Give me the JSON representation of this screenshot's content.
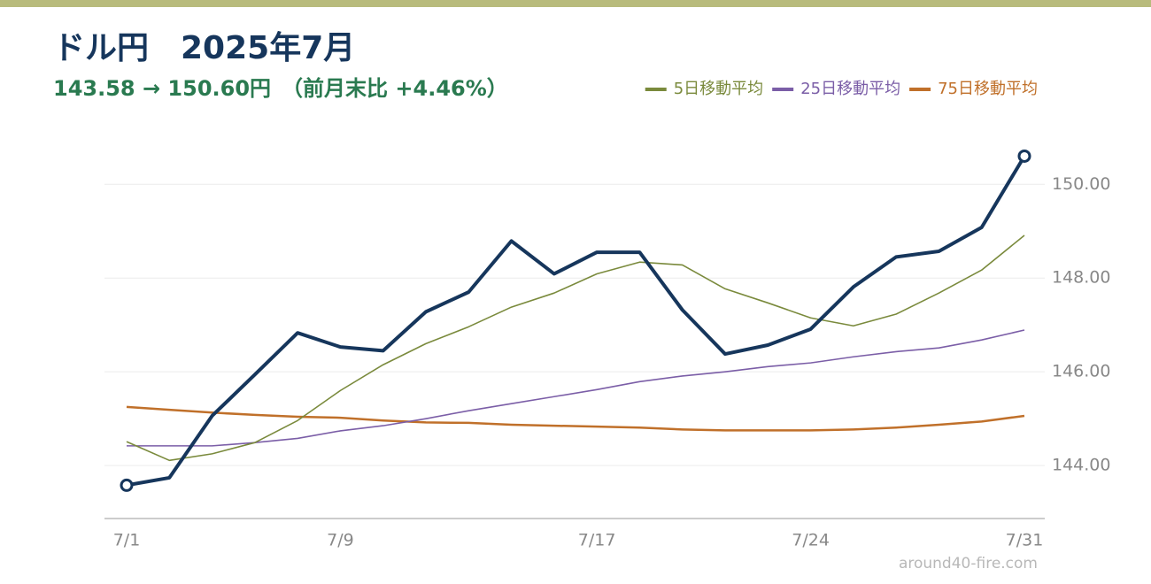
{
  "chart_data": {
    "type": "line",
    "title": "ドル円　2025年7月",
    "subtitle": "143.58 → 150.60円　（前月末比 +4.46%）",
    "watermark": "around40-fire.com",
    "categories": [
      "7/1",
      null,
      null,
      null,
      null,
      "7/9",
      null,
      null,
      null,
      null,
      null,
      "7/17",
      null,
      null,
      null,
      null,
      "7/24",
      null,
      null,
      null,
      null,
      "7/31"
    ],
    "series": [
      {
        "name": "ドル円",
        "color": "#16365c",
        "width": 4,
        "endpoints": true,
        "values": [
          143.58,
          143.74,
          145.06,
          145.94,
          146.83,
          146.53,
          146.45,
          147.28,
          147.7,
          148.79,
          148.09,
          148.55,
          148.55,
          147.32,
          146.38,
          146.57,
          146.91,
          147.81,
          148.45,
          148.57,
          149.08,
          150.6
        ]
      },
      {
        "name": "5日移動平均",
        "color": "#7a8a3c",
        "width": 1.6,
        "values": [
          144.51,
          144.11,
          144.25,
          144.49,
          144.96,
          145.6,
          146.15,
          146.6,
          146.96,
          147.38,
          147.68,
          148.09,
          148.34,
          148.28,
          147.77,
          147.47,
          147.15,
          146.98,
          147.23,
          147.68,
          148.17,
          148.91
        ]
      },
      {
        "name": "25日移動平均",
        "color": "#7b5ea7",
        "width": 1.6,
        "values": [
          144.42,
          144.42,
          144.42,
          144.49,
          144.58,
          144.74,
          144.85,
          145.0,
          145.17,
          145.32,
          145.47,
          145.62,
          145.79,
          145.91,
          146.0,
          146.11,
          146.19,
          146.32,
          146.43,
          146.51,
          146.68,
          146.89
        ]
      },
      {
        "name": "75日移動平均",
        "color": "#c0702a",
        "width": 2.5,
        "values": [
          145.25,
          145.19,
          145.13,
          145.08,
          145.04,
          145.02,
          144.96,
          144.92,
          144.91,
          144.87,
          144.85,
          144.83,
          144.81,
          144.77,
          144.75,
          144.75,
          144.75,
          144.77,
          144.81,
          144.87,
          144.94,
          145.06
        ]
      }
    ],
    "ylim": [
      142.87,
      151.1
    ],
    "yticks": [
      {
        "value": 144,
        "label": "144.00"
      },
      {
        "value": 146,
        "label": "146.00"
      },
      {
        "value": 148,
        "label": "148.00"
      },
      {
        "value": 150,
        "label": "150.00"
      }
    ],
    "grid": true,
    "legend_position": "top-right"
  }
}
